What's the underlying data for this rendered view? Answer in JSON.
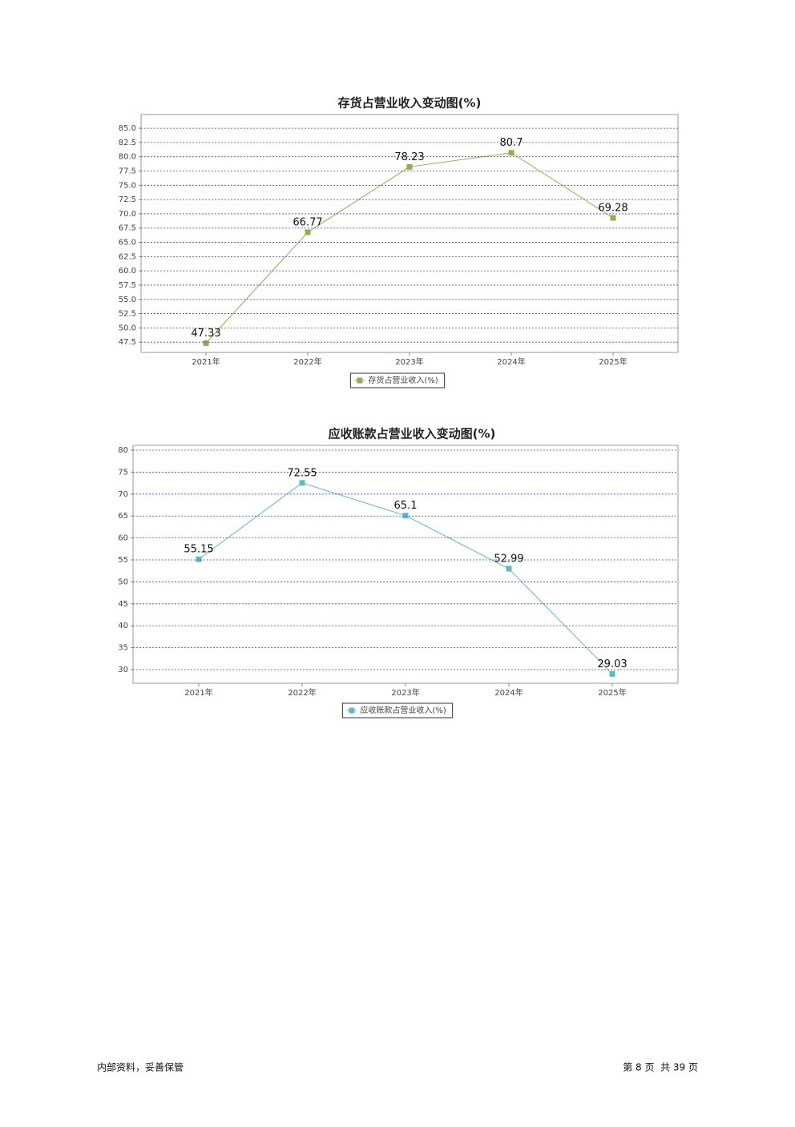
{
  "chart_data": [
    {
      "type": "line",
      "title": "存货占营业收入变动图(%)",
      "categories": [
        "2021年",
        "2022年",
        "2023年",
        "2024年",
        "2025年"
      ],
      "series": [
        {
          "name": "存货占营业收入(%)",
          "color": "#8db04b",
          "values": [
            47.33,
            66.77,
            78.23,
            80.7,
            69.28
          ]
        }
      ],
      "ylim": [
        45.7,
        87.4
      ],
      "yticks": [
        47.5,
        {
          "value": 50,
          "label": "50.0"
        },
        52.5,
        {
          "value": 55,
          "label": "55.0"
        },
        57.5,
        {
          "value": 60,
          "label": "60.0"
        },
        62.5,
        {
          "value": 65,
          "label": "65.0"
        },
        67.5,
        {
          "value": 70,
          "label": "70.0"
        },
        72.5,
        {
          "value": 75,
          "label": "75.0"
        },
        77.5,
        {
          "value": 80,
          "label": "80.0"
        },
        82.5,
        {
          "value": 85,
          "label": "85.0"
        }
      ],
      "grid": true,
      "legend": "bottom"
    },
    {
      "type": "line",
      "title": "应收账款占营业收入变动图(%)",
      "categories": [
        "2021年",
        "2022年",
        "2023年",
        "2024年",
        "2025年"
      ],
      "series": [
        {
          "name": "应收账款占营业收入(%)",
          "color": "#5bbcc2",
          "values": [
            55.15,
            72.55,
            65.1,
            52.99,
            29.03
          ]
        }
      ],
      "ylim": [
        26.9,
        81.1
      ],
      "yticks": [
        30,
        35,
        40,
        45,
        50,
        55,
        60,
        65,
        70,
        75,
        80
      ],
      "grid": true,
      "legend": "bottom"
    }
  ],
  "footer": {
    "left": "内部资料，妥善保管",
    "right": "第 8 页  共 39 页"
  }
}
